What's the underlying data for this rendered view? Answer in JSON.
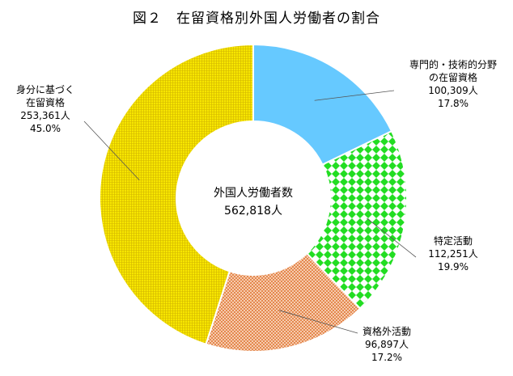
{
  "title": "図２　在留資格別外国人労働者の割合",
  "center": {
    "label": "外国人労働者数",
    "total": "562,818人"
  },
  "chart_data": {
    "type": "pie",
    "style": "donut",
    "unit": "人",
    "slices": [
      {
        "label": "専門的・技術的分野の在留資格",
        "label_lines": [
          "専門的・技術的分野",
          "の在留資格"
        ],
        "value": 100309,
        "value_text": "100,309人",
        "percent": 17.8,
        "percent_text": "17.8%",
        "color": "#66c9ff",
        "pattern": "solid"
      },
      {
        "label": "特定活動",
        "label_lines": [
          "特定活動"
        ],
        "value": 112251,
        "value_text": "112,251人",
        "percent": 19.9,
        "percent_text": "19.9%",
        "color": "#22dd22",
        "pattern": "checker"
      },
      {
        "label": "資格外活動",
        "label_lines": [
          "資格外活動"
        ],
        "value": 96897,
        "value_text": "96,897人",
        "percent": 17.2,
        "percent_text": "17.2%",
        "color": "#f0a070",
        "pattern": "crosshatch"
      },
      {
        "label": "身分に基づく在留資格",
        "label_lines": [
          "身分に基づく",
          "在留資格"
        ],
        "value": 253361,
        "value_text": "253,361人",
        "percent": 45.0,
        "percent_text": "45.0%",
        "color": "#f2dc00",
        "pattern": "grid"
      }
    ]
  }
}
